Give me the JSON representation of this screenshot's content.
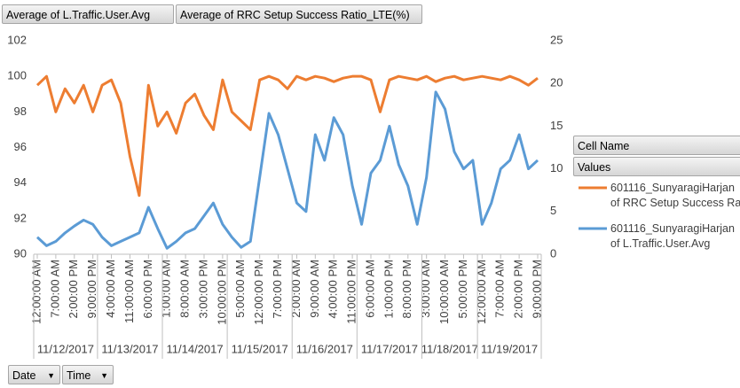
{
  "chart_data": {
    "type": "line",
    "field_buttons": [
      "Average of L.Traffic.User.Avg",
      "Average of RRC Setup Success Ratio_LTE(%)"
    ],
    "legend_title": "Cell Name",
    "legend_subtitle": "Values",
    "axis_buttons": [
      "Date",
      "Time"
    ],
    "categories": [
      "12:00:00 AM",
      null,
      "7:00:00 AM",
      null,
      "2:00:00 PM",
      null,
      "9:00:00 PM",
      null,
      "4:00:00 AM",
      null,
      "11:00:00 AM",
      null,
      "6:00:00 PM",
      null,
      "1:00:00 AM",
      null,
      "8:00:00 AM",
      null,
      "3:00:00 PM",
      null,
      "10:00:00 PM",
      null,
      "5:00:00 AM",
      null,
      "12:00:00 PM",
      null,
      "7:00:00 PM",
      null,
      "2:00:00 AM",
      null,
      "9:00:00 AM",
      null,
      "4:00:00 PM",
      null,
      "11:00:00 PM",
      null,
      "6:00:00 AM",
      null,
      "1:00:00 PM",
      null,
      "8:00:00 PM",
      null,
      "3:00:00 AM",
      null,
      "10:00:00 AM",
      null,
      "5:00:00 PM",
      null,
      "12:00:00 AM",
      null,
      "7:00:00 AM",
      null,
      "2:00:00 PM",
      null,
      "9:00:00 PM"
    ],
    "dates": [
      "11/12/2017",
      null,
      null,
      null,
      null,
      null,
      null,
      "11/13/2017",
      null,
      null,
      null,
      null,
      null,
      null,
      "11/14/2017",
      null,
      null,
      null,
      null,
      null,
      null,
      "11/15/2017",
      null,
      null,
      null,
      null,
      null,
      null,
      "11/16/2017",
      null,
      null,
      null,
      null,
      null,
      null,
      "11/17/2017",
      null,
      null,
      null,
      null,
      null,
      null,
      "11/18/2017",
      null,
      null,
      null,
      null,
      null,
      "11/19/2017",
      null,
      null,
      null,
      null,
      null,
      null
    ],
    "ylim": [
      90,
      102
    ],
    "yticks": [
      90,
      92,
      94,
      96,
      98,
      100,
      102
    ],
    "y2lim": [
      0,
      25
    ],
    "y2ticks": [
      0,
      5,
      10,
      15,
      20,
      25
    ],
    "series": [
      {
        "name": "601116_SunyaragiHarjan\nof RRC Setup Success Ra",
        "color": "#ed7d31",
        "axis": "y",
        "values": [
          99.5,
          100,
          98,
          99.3,
          98.5,
          99.5,
          98,
          99.5,
          99.8,
          98.5,
          95.5,
          93.3,
          99.5,
          97.2,
          98,
          96.8,
          98.5,
          99,
          97.8,
          97,
          99.8,
          98,
          97.5,
          97,
          99.8,
          100,
          99.8,
          99.3,
          100,
          99.8,
          100,
          99.9,
          99.7,
          99.9,
          100,
          100,
          99.8,
          98,
          99.8,
          100,
          99.9,
          99.8,
          100,
          99.7,
          99.9,
          100,
          99.8,
          99.9,
          100,
          99.9,
          99.8,
          100,
          99.8,
          99.5,
          99.9
        ]
      },
      {
        "name": "601116_SunyaragiHarjan\nof L.Traffic.User.Avg",
        "color": "#5b9bd5",
        "axis": "y2",
        "values": [
          2,
          1,
          1.5,
          2.5,
          3.3,
          4,
          3.5,
          2,
          1,
          1.5,
          2,
          2.5,
          5.5,
          3,
          0.7,
          1.5,
          2.5,
          3,
          4.5,
          6,
          3.5,
          2,
          0.8,
          1.5,
          9,
          16.5,
          14,
          10,
          6,
          5,
          14,
          11,
          16,
          14,
          8,
          3.5,
          9.5,
          11,
          15,
          10.5,
          8,
          3.5,
          9,
          19,
          17,
          12,
          10,
          11,
          3.5,
          6,
          10,
          11,
          14,
          10,
          11
        ]
      }
    ]
  }
}
